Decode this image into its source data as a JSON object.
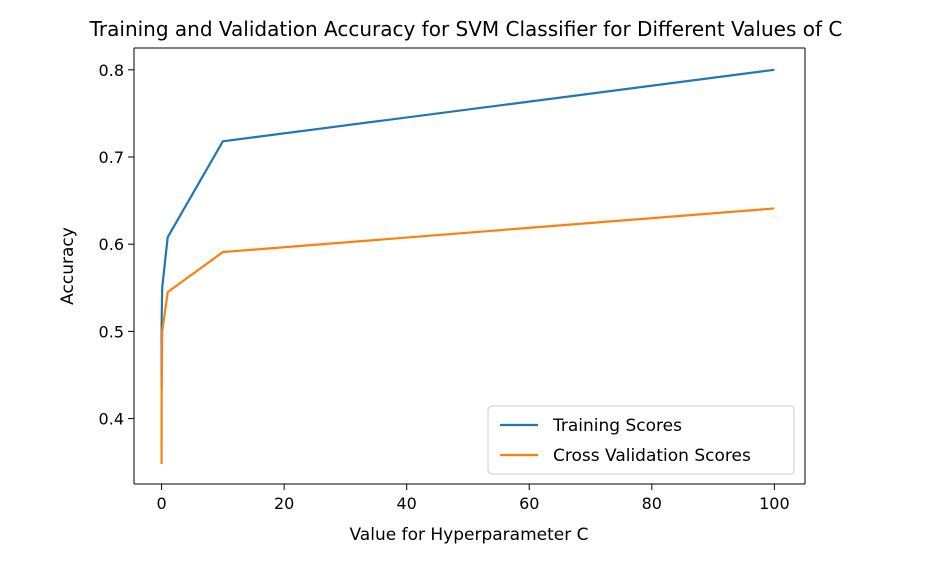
{
  "chart_data": {
    "type": "line",
    "title": "Training and Validation Accuracy for SVM Classifier for Different Values of C",
    "xlabel": "Value for Hyperparameter C",
    "ylabel": "Accuracy",
    "xlim": [
      -4.5,
      105
    ],
    "ylim": [
      0.325,
      0.825
    ],
    "xticks": [
      0,
      20,
      40,
      60,
      80,
      100
    ],
    "yticks": [
      0.4,
      0.5,
      0.6,
      0.7,
      0.8
    ],
    "grid": false,
    "legend_position": "lower-right",
    "series": [
      {
        "name": "Training Scores",
        "color": "#1f77b4",
        "x": [
          0.001,
          0.01,
          0.1,
          1,
          10,
          100
        ],
        "y": [
          0.435,
          0.51,
          0.55,
          0.608,
          0.718,
          0.8
        ]
      },
      {
        "name": "Cross Validation Scores",
        "color": "#ff7f0e",
        "x": [
          0.001,
          0.01,
          0.1,
          1,
          10,
          100
        ],
        "y": [
          0.348,
          0.43,
          0.5,
          0.545,
          0.591,
          0.641
        ]
      }
    ]
  }
}
